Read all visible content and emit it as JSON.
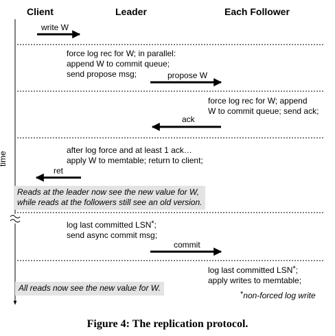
{
  "headers": {
    "client": "Client",
    "leader": "Leader",
    "follower": "Each Follower"
  },
  "time_label": "time",
  "steps": {
    "write_w": "write W",
    "leader_1": [
      "force log rec for W; in parallel:",
      "append W to commit queue;",
      "send propose msg;"
    ],
    "propose": "propose W",
    "follower_1": [
      "force log rec for W; append",
      "W to commit queue; send ack;"
    ],
    "ack": "ack",
    "leader_2": [
      "after log force and at least 1 ack…",
      "apply W to memtable; return to client;"
    ],
    "ret": "ret",
    "note_1": [
      "Reads at the leader now see the new value for W,",
      "while reads at the followers still see an old version."
    ],
    "leader_3": [
      "log last committed LSN",
      "*",
      ";",
      "send async commit msg;"
    ],
    "commit": "commit",
    "follower_2": [
      "log last committed LSN",
      "*",
      ";",
      "apply writes to memtable;"
    ],
    "note_2": "All reads now see the new value for W.",
    "footnote": [
      "*",
      "non-forced log write"
    ]
  },
  "caption": "Figure 4: The replication protocol."
}
